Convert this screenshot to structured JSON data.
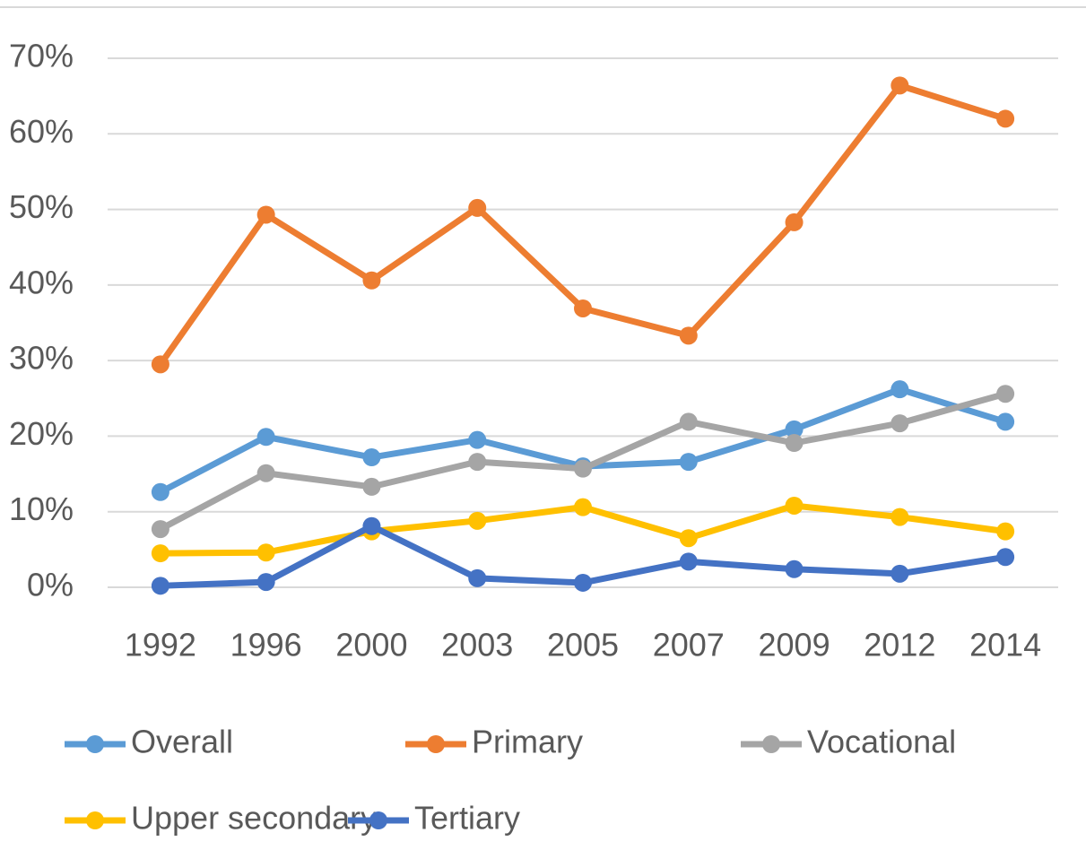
{
  "chart_data": {
    "type": "line",
    "categories": [
      "1992",
      "1996",
      "2000",
      "2003",
      "2005",
      "2007",
      "2009",
      "2012",
      "2014"
    ],
    "series": [
      {
        "name": "Overall",
        "color": "#5b9bd5",
        "values": [
          12.6,
          19.9,
          17.2,
          19.5,
          16.0,
          16.6,
          20.9,
          26.2,
          21.9
        ]
      },
      {
        "name": "Primary",
        "color": "#ed7d31",
        "values": [
          29.5,
          49.3,
          40.6,
          50.2,
          36.9,
          33.3,
          48.3,
          66.4,
          62.0
        ]
      },
      {
        "name": "Vocational",
        "color": "#a5a5a5",
        "values": [
          7.7,
          15.1,
          13.3,
          16.6,
          15.7,
          21.9,
          19.1,
          21.7,
          25.6
        ]
      },
      {
        "name": "Upper secondary",
        "color": "#ffc000",
        "values": [
          4.5,
          4.6,
          7.4,
          8.8,
          10.6,
          6.5,
          10.8,
          9.3,
          7.4
        ]
      },
      {
        "name": "Tertiary",
        "color": "#4472c4",
        "values": [
          0.2,
          0.7,
          8.1,
          1.2,
          0.6,
          3.4,
          2.4,
          1.8,
          4.0
        ]
      }
    ],
    "ylim": [
      0,
      70
    ],
    "yticks": [
      {
        "value": 0,
        "label": "0%"
      },
      {
        "value": 10,
        "label": "10%"
      },
      {
        "value": 20,
        "label": "20%"
      },
      {
        "value": 30,
        "label": "30%"
      },
      {
        "value": 40,
        "label": "40%"
      },
      {
        "value": 50,
        "label": "50%"
      },
      {
        "value": 60,
        "label": "60%"
      },
      {
        "value": 70,
        "label": "70%"
      }
    ],
    "grid": true,
    "legend": "bottom"
  }
}
